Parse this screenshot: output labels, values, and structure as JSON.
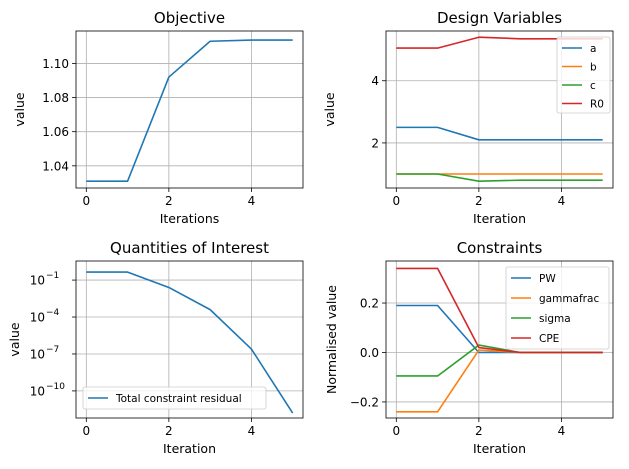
{
  "chart_data": [
    {
      "id": "objective",
      "type": "line",
      "title": "Objective",
      "xlabel": "Iterations",
      "ylabel": "value",
      "xlim": [
        -0.25,
        5.25
      ],
      "ylim": [
        1.027,
        1.119
      ],
      "xticks": [
        0,
        2,
        4
      ],
      "yticks": [
        1.04,
        1.06,
        1.08,
        1.1
      ],
      "yticklabels": [
        "1.04",
        "1.06",
        "1.08",
        "1.10"
      ],
      "grid": true,
      "x": [
        0,
        1,
        2,
        3,
        4,
        5
      ],
      "series": [
        {
          "values": [
            1.031,
            1.031,
            1.092,
            1.113,
            1.1137,
            1.1137
          ],
          "color": "#1f77b4"
        }
      ]
    },
    {
      "id": "design-variables",
      "type": "line",
      "title": "Design Variables",
      "xlabel": "Iteration",
      "ylabel": "value",
      "xlim": [
        -0.25,
        5.25
      ],
      "ylim": [
        0.55,
        5.6
      ],
      "xticks": [
        0,
        2,
        4
      ],
      "yticks": [
        2,
        4
      ],
      "yticklabels": [
        "2",
        "4"
      ],
      "grid": true,
      "legend": "top-right",
      "x": [
        0,
        1,
        2,
        3,
        4,
        5
      ],
      "series": [
        {
          "name": "a",
          "values": [
            2.5,
            2.5,
            2.1,
            2.1,
            2.1,
            2.1
          ],
          "color": "#1f77b4"
        },
        {
          "name": "b",
          "values": [
            1.0,
            1.0,
            1.0,
            1.0,
            1.0,
            1.0
          ],
          "color": "#ff7f0e"
        },
        {
          "name": "c",
          "values": [
            1.0,
            1.0,
            0.77,
            0.8,
            0.8,
            0.8
          ],
          "color": "#2ca02c"
        },
        {
          "name": "R0",
          "values": [
            5.05,
            5.05,
            5.4,
            5.35,
            5.35,
            5.35
          ],
          "color": "#d62728"
        }
      ]
    },
    {
      "id": "quantities-of-interest",
      "type": "line",
      "title": "Quantities of Interest",
      "xlabel": "Iteration",
      "ylabel": "value",
      "xlim": [
        -0.25,
        5.25
      ],
      "ylim": [
        -12.2,
        0.55
      ],
      "yscale": "log",
      "xticks": [
        0,
        2,
        4
      ],
      "yticks": [
        -10,
        -7,
        -4,
        -1
      ],
      "yticklabels": [
        "10",
        "10",
        "10",
        "10"
      ],
      "yticksup": [
        "−10",
        "−7",
        "−4",
        "−1"
      ],
      "grid": true,
      "legend": "bottom-left",
      "x": [
        0,
        1,
        2,
        3,
        4,
        5
      ],
      "series": [
        {
          "name": "Total constraint residual",
          "values": [
            -0.35,
            -0.35,
            -1.6,
            -3.4,
            -6.6,
            -11.8
          ],
          "color": "#1f77b4"
        }
      ]
    },
    {
      "id": "constraints",
      "type": "line",
      "title": "Constraints",
      "xlabel": "Iteration",
      "ylabel": "Normalised value",
      "xlim": [
        -0.25,
        5.25
      ],
      "ylim": [
        -0.265,
        0.37
      ],
      "xticks": [
        0,
        2,
        4
      ],
      "yticks": [
        -0.2,
        0.0,
        0.2
      ],
      "yticklabels": [
        "−0.2",
        "0.0",
        "0.2"
      ],
      "grid": true,
      "legend": "top-right",
      "x": [
        0,
        1,
        2,
        3,
        4,
        5
      ],
      "series": [
        {
          "name": "PW",
          "values": [
            0.19,
            0.19,
            0.0,
            0.0,
            0.0,
            0.0
          ],
          "color": "#1f77b4"
        },
        {
          "name": "gammafrac",
          "values": [
            -0.24,
            -0.24,
            0.01,
            0.0,
            0.0,
            0.0
          ],
          "color": "#ff7f0e"
        },
        {
          "name": "sigma",
          "values": [
            -0.095,
            -0.095,
            0.03,
            0.0,
            0.0,
            0.0
          ],
          "color": "#2ca02c"
        },
        {
          "name": "CPE",
          "values": [
            0.34,
            0.34,
            0.02,
            0.0,
            0.0,
            0.0
          ],
          "color": "#d62728"
        }
      ]
    }
  ]
}
